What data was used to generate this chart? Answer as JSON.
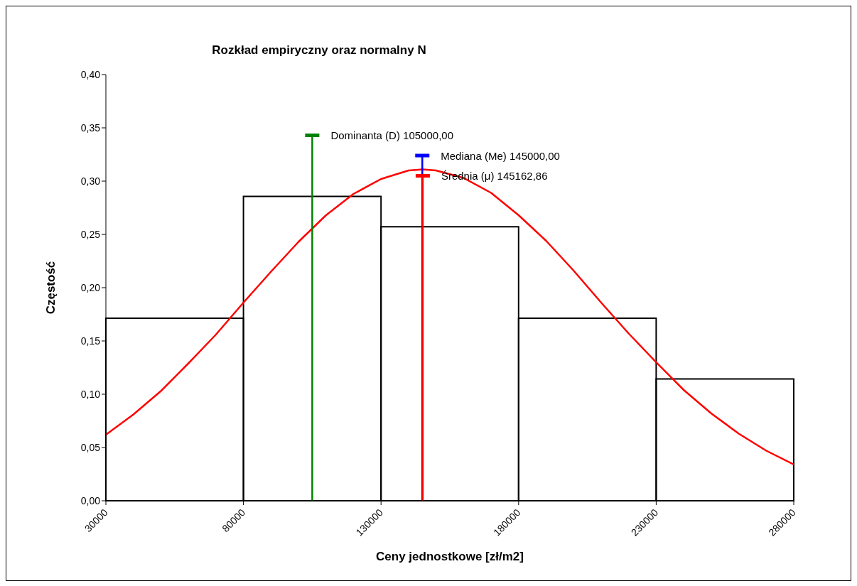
{
  "chart_data": {
    "type": "histogram",
    "title": "Rozkład empiryczny oraz normalny N",
    "xlabel": "Ceny jednostkowe  [zł/m2]",
    "ylabel": "Częstość",
    "bins": [
      30000,
      80000,
      130000,
      180000,
      230000,
      280000
    ],
    "values": [
      0.1714,
      0.2857,
      0.2571,
      0.1714,
      0.1143
    ],
    "color": "#000000",
    "series": [
      {
        "type": "line",
        "color": "#ff0000",
        "x": [
          30000,
          40000,
          50000,
          60000,
          70000,
          80000,
          90000,
          100000,
          110000,
          120000,
          130000,
          140000,
          145163,
          150000,
          160000,
          170000,
          180000,
          190000,
          200000,
          210000,
          220000,
          230000,
          240000,
          250000,
          260000,
          270000,
          280000
        ],
        "values": [
          0.062,
          0.081,
          0.103,
          0.129,
          0.156,
          0.186,
          0.215,
          0.243,
          0.268,
          0.288,
          0.302,
          0.31,
          0.311,
          0.31,
          0.303,
          0.289,
          0.268,
          0.244,
          0.216,
          0.186,
          0.157,
          0.13,
          0.104,
          0.082,
          0.063,
          0.047,
          0.034
        ]
      },
      {
        "type": "line",
        "name": "Dominanta (D) 105000,00",
        "color": "#008000",
        "x": [
          105000,
          105000
        ],
        "values": [
          0,
          0.343
        ]
      },
      {
        "type": "line",
        "name": "Mediana (Me) 145000,00",
        "color": "#0000ff",
        "x": [
          145000,
          145000
        ],
        "values": [
          0,
          0.324
        ]
      },
      {
        "type": "line",
        "name": "Średnia (μ) 145162,86",
        "color": "#ff0000",
        "x": [
          145162.86,
          145162.86
        ],
        "values": [
          0,
          0.305
        ]
      }
    ],
    "xlim": [
      30000,
      280000
    ],
    "xticks": [
      30000,
      80000,
      130000,
      180000,
      230000,
      280000
    ],
    "ylim": [
      0,
      0.4
    ],
    "yticks": [
      {
        "value": 0,
        "label": "0,00"
      },
      {
        "value": 0.05,
        "label": "0,05"
      },
      {
        "value": 0.1,
        "label": "0,10"
      },
      {
        "value": 0.15,
        "label": "0,15"
      },
      {
        "value": 0.2,
        "label": "0,20"
      },
      {
        "value": 0.25,
        "label": "0,25"
      },
      {
        "value": 0.3,
        "label": "0,30"
      },
      {
        "value": 0.35,
        "label": "0,35"
      },
      {
        "value": 0.4,
        "label": "0,40"
      }
    ],
    "grid": false,
    "legend": "top",
    "marker": "none"
  }
}
